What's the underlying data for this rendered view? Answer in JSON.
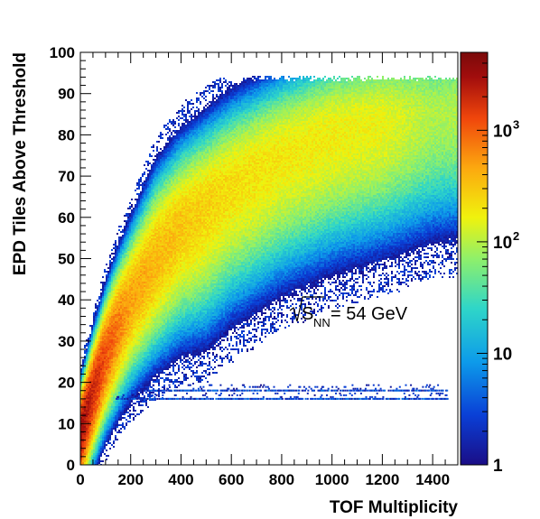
{
  "chart_data": {
    "type": "heatmap",
    "xlabel": "TOF Multiplicity",
    "ylabel": "EPD Tiles Above Threshold",
    "xlim": [
      0,
      1500
    ],
    "ylim": [
      0,
      100
    ],
    "x_ticks": [
      "0",
      "200",
      "400",
      "600",
      "800",
      "1000",
      "1200",
      "1400"
    ],
    "x_tick_values": [
      0,
      200,
      400,
      600,
      800,
      1000,
      1200,
      1400
    ],
    "y_ticks": [
      "0",
      "10",
      "20",
      "30",
      "40",
      "50",
      "60",
      "70",
      "80",
      "90",
      "100"
    ],
    "y_tick_values": [
      0,
      10,
      20,
      30,
      40,
      50,
      60,
      70,
      80,
      90,
      100
    ],
    "z_scale": "log",
    "zlim": [
      1,
      5000
    ],
    "z_ticks": [
      "1",
      "10",
      "10^2",
      "10^3"
    ],
    "z_tick_values": [
      1,
      10,
      100,
      1000
    ],
    "colormap": [
      "#1a0d86",
      "#0a3fd6",
      "#0d9bea",
      "#2fd6c8",
      "#8ff06a",
      "#f0f20d",
      "#fca80f",
      "#f0460c",
      "#a20d0d",
      "#7a0a0a"
    ],
    "annotation": {
      "label": "S",
      "subscript": "NN",
      "value": " = 54 GeV",
      "x": 560,
      "y": 37
    },
    "main_band": {
      "description_of_shape": "ridge of counts",
      "ridge_points": [
        [
          0,
          8
        ],
        [
          50,
          18
        ],
        [
          100,
          27
        ],
        [
          150,
          34
        ],
        [
          200,
          40
        ],
        [
          300,
          50
        ],
        [
          400,
          58
        ],
        [
          600,
          68
        ],
        [
          800,
          75
        ],
        [
          1000,
          80
        ],
        [
          1200,
          83
        ],
        [
          1400,
          85
        ],
        [
          1500,
          86
        ]
      ],
      "peak_counts": [
        [
          0,
          2000
        ],
        [
          50,
          1200
        ],
        [
          100,
          700
        ],
        [
          200,
          300
        ],
        [
          400,
          200
        ],
        [
          600,
          150
        ],
        [
          800,
          130
        ],
        [
          1000,
          120
        ],
        [
          1200,
          110
        ],
        [
          1400,
          60
        ]
      ]
    },
    "side_bands": [
      {
        "y": 16,
        "x_range": [
          140,
          1460
        ]
      },
      {
        "y": 18,
        "x_range": [
          250,
          1460
        ]
      }
    ]
  }
}
